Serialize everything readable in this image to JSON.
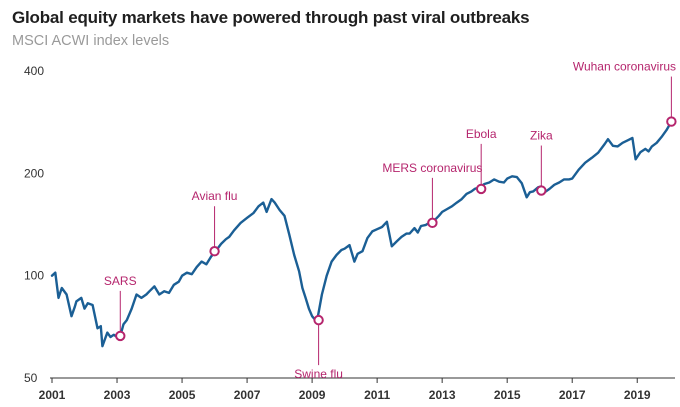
{
  "title": "Global equity markets have powered through past viral outbreaks",
  "subtitle": "MSCI ACWI index levels",
  "colors": {
    "line": "#1b5f95",
    "accent": "#b5256d",
    "axis": "#333333",
    "subtitle": "#9a9a9a"
  },
  "chart_data": {
    "type": "line",
    "title": "Global equity markets have powered through past viral outbreaks",
    "subtitle": "MSCI ACWI index levels",
    "xlabel": "",
    "ylabel": "",
    "yscale": "log",
    "xlim": [
      2001.0,
      2020.1
    ],
    "ylim": [
      50,
      400
    ],
    "x_ticks": [
      2001,
      2003,
      2005,
      2007,
      2009,
      2011,
      2013,
      2015,
      2017,
      2019
    ],
    "y_ticks": [
      50,
      100,
      200,
      400
    ],
    "series": [
      {
        "name": "MSCI ACWI",
        "x": [
          2001.0,
          2001.1,
          2001.2,
          2001.3,
          2001.45,
          2001.6,
          2001.7,
          2001.75,
          2001.9,
          2002.0,
          2002.1,
          2002.25,
          2002.4,
          2002.5,
          2002.55,
          2002.7,
          2002.8,
          2002.9,
          2003.0,
          2003.1,
          2003.2,
          2003.3,
          2003.45,
          2003.6,
          2003.75,
          2003.9,
          2004.0,
          2004.15,
          2004.3,
          2004.45,
          2004.6,
          2004.75,
          2004.9,
          2005.0,
          2005.15,
          2005.3,
          2005.45,
          2005.6,
          2005.75,
          2005.9,
          2006.0,
          2006.2,
          2006.35,
          2006.45,
          2006.6,
          2006.8,
          2007.0,
          2007.2,
          2007.35,
          2007.5,
          2007.6,
          2007.75,
          2007.85,
          2008.0,
          2008.15,
          2008.3,
          2008.45,
          2008.6,
          2008.7,
          2008.8,
          2008.9,
          2009.0,
          2009.1,
          2009.17,
          2009.3,
          2009.45,
          2009.6,
          2009.75,
          2009.9,
          2010.0,
          2010.15,
          2010.3,
          2010.4,
          2010.55,
          2010.7,
          2010.85,
          2011.0,
          2011.15,
          2011.3,
          2011.45,
          2011.6,
          2011.75,
          2011.9,
          2012.0,
          2012.15,
          2012.25,
          2012.35,
          2012.5,
          2012.65,
          2012.75,
          2012.9,
          2013.0,
          2013.15,
          2013.3,
          2013.45,
          2013.6,
          2013.75,
          2013.9,
          2014.0,
          2014.15,
          2014.3,
          2014.45,
          2014.6,
          2014.75,
          2014.9,
          2015.0,
          2015.15,
          2015.3,
          2015.45,
          2015.6,
          2015.7,
          2015.8,
          2015.95,
          2016.05,
          2016.15,
          2016.3,
          2016.45,
          2016.6,
          2016.75,
          2016.9,
          2017.0,
          2017.2,
          2017.4,
          2017.6,
          2017.8,
          2018.0,
          2018.1,
          2018.25,
          2018.4,
          2018.55,
          2018.7,
          2018.85,
          2018.95,
          2019.1,
          2019.25,
          2019.35,
          2019.45,
          2019.6,
          2019.75,
          2019.9,
          2020.05
        ],
        "values": [
          100,
          102,
          86,
          92,
          88,
          76,
          81,
          84,
          86,
          80,
          83,
          82,
          70,
          71,
          62,
          68,
          66,
          67,
          66,
          66.5,
          72,
          74,
          80,
          88,
          86,
          88,
          90,
          93,
          88,
          90,
          89,
          94,
          96,
          100,
          102,
          101,
          106,
          110,
          108,
          114,
          117,
          124,
          128,
          130,
          136,
          143,
          148,
          153,
          160,
          164,
          154,
          168,
          164,
          156,
          150,
          132,
          115,
          103,
          92,
          86,
          80,
          76,
          74,
          75,
          88,
          100,
          110,
          115,
          119,
          120,
          123,
          110,
          116,
          118,
          129,
          135,
          137,
          139,
          144,
          122,
          126,
          130,
          133,
          133,
          138,
          134,
          140,
          141,
          144,
          145,
          150,
          154,
          157,
          160,
          164,
          168,
          174,
          177,
          180,
          182,
          186,
          188,
          192,
          189,
          188,
          193,
          196,
          195,
          187,
          170,
          176,
          177,
          182,
          183,
          176,
          180,
          185,
          188,
          192,
          192,
          193,
          205,
          215,
          222,
          230,
          244,
          252,
          241,
          240,
          246,
          250,
          254,
          220,
          231,
          236,
          232,
          240,
          246,
          256,
          268,
          284
        ]
      }
    ],
    "annotations": [
      {
        "label": "SARS",
        "x": 2003.1,
        "y": 66.5,
        "label_pos": "above"
      },
      {
        "label": "Avian flu",
        "x": 2006.0,
        "y": 118,
        "label_pos": "above"
      },
      {
        "label": "Swine flu",
        "x": 2009.2,
        "y": 74,
        "label_pos": "below"
      },
      {
        "label": "MERS coronavirus",
        "x": 2012.7,
        "y": 143,
        "label_pos": "above"
      },
      {
        "label": "Ebola",
        "x": 2014.2,
        "y": 180,
        "label_pos": "above"
      },
      {
        "label": "Zika",
        "x": 2016.05,
        "y": 178,
        "label_pos": "above"
      },
      {
        "label": "Wuhan coronavirus",
        "x": 2020.05,
        "y": 284,
        "label_pos": "above"
      }
    ]
  }
}
